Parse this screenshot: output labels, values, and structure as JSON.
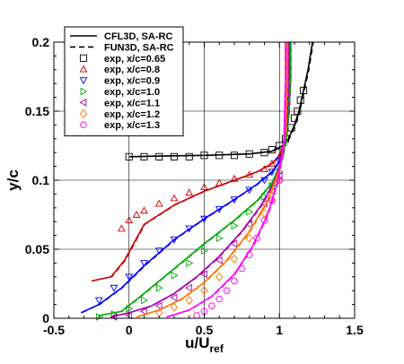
{
  "chart_data": {
    "type": "line",
    "xlabel": "u/U",
    "xlabel_sub": "ref",
    "ylabel": "y/c",
    "xlim": [
      -0.5,
      1.5
    ],
    "ylim": [
      0,
      0.2
    ],
    "x_ticks": [
      -0.5,
      0,
      0.5,
      1,
      1.5
    ],
    "x_tick_labels": [
      "-0.5",
      "0",
      "0.5",
      "1",
      "1.5"
    ],
    "y_ticks": [
      0,
      0.05,
      0.1,
      0.15,
      0.2
    ],
    "y_tick_labels": [
      "0",
      "0.05",
      "0.1",
      "0.15",
      "0.2"
    ],
    "grid": true,
    "legend_position": "top-left",
    "legend": [
      {
        "label": "CFL3D, SA-RC",
        "kind": "line",
        "dash": "solid",
        "color": "#000000"
      },
      {
        "label": "FUN3D, SA-RC",
        "kind": "line",
        "dash": "dashed",
        "color": "#000000"
      },
      {
        "label": "exp, x/c=0.65",
        "kind": "marker",
        "marker": "square",
        "color": "#000000"
      },
      {
        "label": "exp, x/c=0.8",
        "kind": "marker",
        "marker": "triangle-up",
        "color": "#cc0000"
      },
      {
        "label": "exp, x/c=0.9",
        "kind": "marker",
        "marker": "triangle-down",
        "color": "#0000ff"
      },
      {
        "label": "exp, x/c=1.0",
        "kind": "marker",
        "marker": "triangle-right",
        "color": "#00aa00"
      },
      {
        "label": "exp, x/c=1.1",
        "kind": "marker",
        "marker": "triangle-left",
        "color": "#aa00aa"
      },
      {
        "label": "exp, x/c=1.2",
        "kind": "marker",
        "marker": "diamond",
        "color": "#ff7700"
      },
      {
        "label": "exp, x/c=1.3",
        "kind": "marker",
        "marker": "hexagon",
        "color": "#ff00ff"
      }
    ],
    "series": [
      {
        "marker": "square",
        "color": "#000000",
        "curve_x": [
          0.0,
          0.2,
          0.5,
          0.8,
          0.95,
          1.02,
          1.06,
          1.1,
          1.13,
          1.16,
          1.19,
          1.22
        ],
        "curve_y": [
          0.117,
          0.1175,
          0.118,
          0.119,
          0.121,
          0.125,
          0.13,
          0.14,
          0.15,
          0.165,
          0.18,
          0.2
        ],
        "exp_x": [
          0.0,
          0.1,
          0.2,
          0.3,
          0.4,
          0.5,
          0.6,
          0.7,
          0.8,
          0.9,
          0.95,
          1.0,
          1.04,
          1.08,
          1.1,
          1.12,
          1.14,
          1.16
        ],
        "exp_y": [
          0.117,
          0.117,
          0.117,
          0.117,
          0.117,
          0.118,
          0.118,
          0.118,
          0.119,
          0.12,
          0.122,
          0.125,
          0.13,
          0.138,
          0.145,
          0.15,
          0.158,
          0.165
        ]
      },
      {
        "marker": "triangle-up",
        "color": "#cc0000",
        "curve_x": [
          -0.25,
          -0.12,
          -0.03,
          0.1,
          0.3,
          0.5,
          0.7,
          0.85,
          0.95,
          1.0,
          1.04,
          1.06,
          1.07,
          1.07
        ],
        "curve_y": [
          0.027,
          0.03,
          0.042,
          0.068,
          0.082,
          0.092,
          0.1,
          0.106,
          0.112,
          0.118,
          0.13,
          0.15,
          0.175,
          0.2
        ],
        "exp_x": [
          -0.05,
          0.0,
          0.05,
          0.1,
          0.2,
          0.3,
          0.4,
          0.5,
          0.6,
          0.7,
          0.8,
          0.9,
          0.95,
          1.0
        ],
        "exp_y": [
          0.065,
          0.071,
          0.075,
          0.078,
          0.083,
          0.087,
          0.091,
          0.095,
          0.098,
          0.101,
          0.104,
          0.108,
          0.112,
          0.117
        ]
      },
      {
        "marker": "triangle-down",
        "color": "#0000ff",
        "curve_x": [
          -0.32,
          -0.2,
          -0.05,
          0.1,
          0.3,
          0.5,
          0.7,
          0.85,
          0.95,
          1.0,
          1.04,
          1.06,
          1.07,
          1.07
        ],
        "curve_y": [
          0.004,
          0.01,
          0.022,
          0.038,
          0.057,
          0.072,
          0.086,
          0.097,
          0.106,
          0.114,
          0.128,
          0.15,
          0.175,
          0.2
        ],
        "exp_x": [
          -0.2,
          -0.1,
          0.0,
          0.1,
          0.2,
          0.3,
          0.4,
          0.5,
          0.6,
          0.7,
          0.8,
          0.9,
          0.95,
          1.0
        ],
        "exp_y": [
          0.013,
          0.022,
          0.03,
          0.04,
          0.049,
          0.057,
          0.065,
          0.072,
          0.079,
          0.086,
          0.093,
          0.1,
          0.106,
          0.114
        ]
      },
      {
        "marker": "triangle-right",
        "color": "#00aa00",
        "curve_x": [
          -0.2,
          -0.05,
          0.1,
          0.3,
          0.5,
          0.7,
          0.85,
          0.95,
          1.0,
          1.04,
          1.06,
          1.07,
          1.07
        ],
        "curve_y": [
          0.002,
          0.005,
          0.018,
          0.036,
          0.054,
          0.071,
          0.085,
          0.098,
          0.11,
          0.126,
          0.15,
          0.175,
          0.2
        ],
        "exp_x": [
          -0.2,
          -0.1,
          0.0,
          0.1,
          0.2,
          0.3,
          0.4,
          0.5,
          0.6,
          0.7,
          0.8,
          0.9,
          0.95,
          1.0
        ],
        "exp_y": [
          0.001,
          0.003,
          0.007,
          0.013,
          0.022,
          0.031,
          0.04,
          0.049,
          0.058,
          0.067,
          0.077,
          0.088,
          0.096,
          0.106
        ]
      },
      {
        "marker": "triangle-left",
        "color": "#aa00aa",
        "curve_x": [
          -0.12,
          0.0,
          0.15,
          0.3,
          0.45,
          0.6,
          0.75,
          0.88,
          0.97,
          1.02,
          1.05,
          1.06,
          1.06
        ],
        "curve_y": [
          0.001,
          0.004,
          0.009,
          0.018,
          0.03,
          0.045,
          0.063,
          0.082,
          0.1,
          0.118,
          0.145,
          0.175,
          0.2
        ],
        "exp_x": [
          -0.1,
          0.0,
          0.1,
          0.2,
          0.3,
          0.4,
          0.5,
          0.6,
          0.7,
          0.8,
          0.9,
          0.95,
          1.0
        ],
        "exp_y": [
          0.001,
          0.002,
          0.005,
          0.009,
          0.015,
          0.022,
          0.032,
          0.042,
          0.054,
          0.068,
          0.083,
          0.092,
          0.103
        ]
      },
      {
        "marker": "diamond",
        "color": "#ff7700",
        "curve_x": [
          0.05,
          0.2,
          0.35,
          0.5,
          0.65,
          0.8,
          0.92,
          1.0,
          1.04,
          1.05,
          1.05
        ],
        "curve_y": [
          0.001,
          0.006,
          0.014,
          0.026,
          0.042,
          0.063,
          0.085,
          0.108,
          0.135,
          0.17,
          0.2
        ],
        "exp_x": [
          0.2,
          0.3,
          0.4,
          0.5,
          0.6,
          0.7,
          0.8,
          0.9,
          0.95,
          1.0
        ],
        "exp_y": [
          0.004,
          0.008,
          0.013,
          0.02,
          0.03,
          0.043,
          0.058,
          0.076,
          0.086,
          0.1
        ]
      },
      {
        "marker": "hexagon",
        "color": "#ff00ff",
        "curve_x": [
          0.25,
          0.4,
          0.55,
          0.7,
          0.82,
          0.92,
          0.99,
          1.03,
          1.04,
          1.04
        ],
        "curve_y": [
          0.001,
          0.006,
          0.016,
          0.032,
          0.052,
          0.075,
          0.1,
          0.13,
          0.17,
          0.2
        ],
        "exp_x": [
          0.45,
          0.5,
          0.55,
          0.6,
          0.65,
          0.7,
          0.75,
          0.8,
          0.85,
          0.9,
          0.95,
          1.0
        ],
        "exp_y": [
          0.002,
          0.005,
          0.009,
          0.014,
          0.02,
          0.027,
          0.036,
          0.046,
          0.058,
          0.071,
          0.085,
          0.1
        ]
      }
    ]
  }
}
